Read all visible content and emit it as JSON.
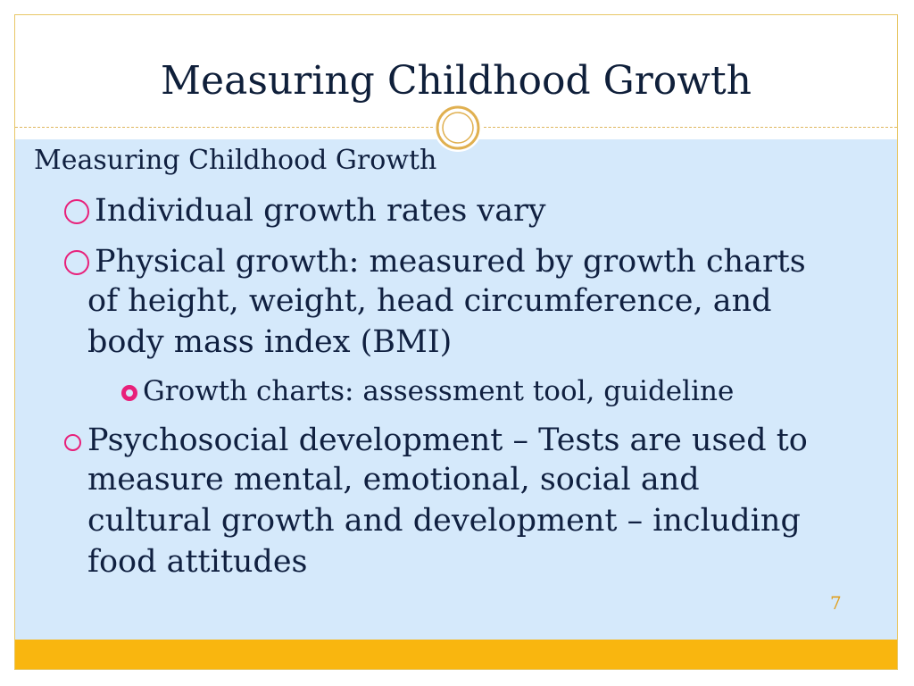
{
  "slide": {
    "title": "Measuring Childhood Growth",
    "page_number": "7",
    "colors": {
      "title_text": "#0f1f3a",
      "content_background": "#d5e9fb",
      "footer_bar": "#f9b60f",
      "bullet_accent": "#e8207a",
      "frame_border": "#e8c766"
    }
  },
  "content": {
    "heading": "Measuring Childhood Growth",
    "bullets": [
      {
        "icon": "hollow-circle-bullet",
        "lines": [
          "Individual growth rates vary"
        ]
      },
      {
        "icon": "hollow-circle-bullet",
        "lines": [
          "Physical growth: measured by growth charts",
          "of height, weight, head circumference, and",
          "body mass index (BMI)"
        ]
      },
      {
        "icon": "filled-ring-bullet",
        "lines": [
          "Growth charts: assessment tool, guideline"
        ]
      },
      {
        "icon": "small-hollow-circle-bullet",
        "lines": [
          "Psychosocial development – Tests are used to",
          "measure mental, emotional, social and",
          "cultural growth and development – including",
          "food attitudes"
        ]
      }
    ]
  }
}
